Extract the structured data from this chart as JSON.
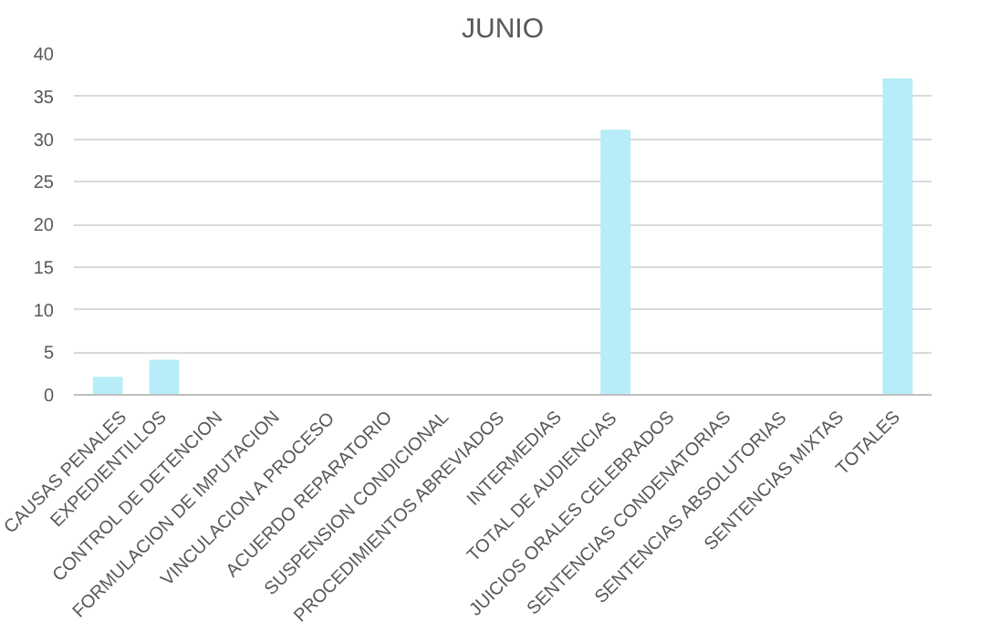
{
  "chart_data": {
    "type": "bar",
    "title": "JUNIO",
    "categories": [
      "CAUSAS PENALES",
      "EXPEDIENTILLOS",
      "CONTROL DE DETENCION",
      "FORMULACION DE IMPUTACION",
      "VINCULACION A PROCESO",
      "ACUERDO REPARATORIO",
      "SUSPENSION CONDICIONAL",
      "PROCEDIMIENTOS ABREVIADOS",
      "INTERMEDIAS",
      "TOTAL DE AUDIENCIAS",
      "JUICIOS ORALES CELEBRADOS",
      "SENTENCIAS CONDENATORIAS",
      "SENTENCIAS ABSOLUTORIAS",
      "SENTENCIAS MIXTAS",
      "TOTALES"
    ],
    "values": [
      2,
      4,
      0,
      0,
      0,
      0,
      0,
      0,
      0,
      31,
      0,
      0,
      0,
      0,
      37
    ],
    "color": "#b7edf8",
    "ylim": [
      0,
      40
    ],
    "yticks": [
      0,
      5,
      10,
      15,
      20,
      25,
      30,
      35,
      40
    ],
    "grid": "y"
  }
}
